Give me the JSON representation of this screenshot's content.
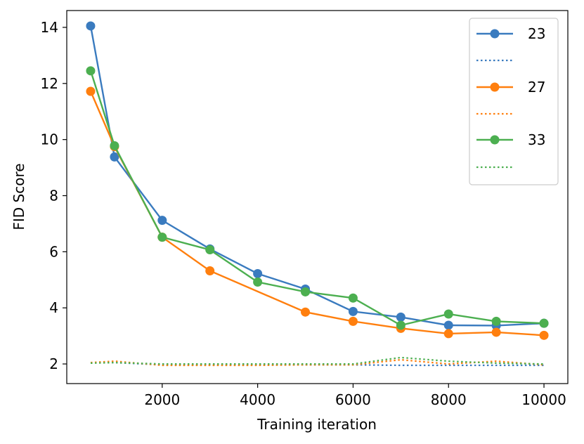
{
  "chart_data": {
    "type": "line",
    "title": "",
    "xlabel": "Training iteration",
    "ylabel": "FID Score",
    "xlim": [
      0,
      10500
    ],
    "ylim": [
      1.3,
      14.6
    ],
    "xticks": [
      2000,
      4000,
      6000,
      8000,
      10000
    ],
    "yticks": [
      2,
      4,
      6,
      8,
      10,
      12,
      14
    ],
    "x": [
      500,
      1000,
      2000,
      3000,
      4000,
      5000,
      6000,
      7000,
      8000,
      9000,
      10000
    ],
    "series": [
      {
        "name": "23",
        "color": "#3a7bbf",
        "style": "solid-marker",
        "values": [
          14.05,
          9.38,
          7.12,
          6.1,
          5.22,
          4.67,
          3.87,
          3.67,
          3.38,
          3.37,
          3.45
        ]
      },
      {
        "name": "",
        "color": "#3a7bbf",
        "style": "dotted",
        "values": [
          2.05,
          2.05,
          1.97,
          1.97,
          1.97,
          1.97,
          1.97,
          1.95,
          1.95,
          1.95,
          1.95
        ]
      },
      {
        "name": "27",
        "color": "#ff7f0e",
        "style": "solid-marker",
        "values": [
          11.72,
          9.75,
          6.52,
          5.32,
          null,
          3.85,
          3.52,
          3.27,
          3.08,
          3.13,
          3.02
        ]
      },
      {
        "name": "",
        "color": "#ff7f0e",
        "style": "dotted",
        "values": [
          2.05,
          2.1,
          1.95,
          1.95,
          1.95,
          1.97,
          1.97,
          2.15,
          2.0,
          2.1,
          1.97
        ]
      },
      {
        "name": "33",
        "color": "#4caf50",
        "style": "solid-marker",
        "values": [
          12.45,
          9.78,
          6.52,
          6.07,
          4.92,
          4.57,
          4.35,
          3.38,
          3.78,
          3.52,
          3.45
        ]
      },
      {
        "name": "",
        "color": "#4caf50",
        "style": "dotted",
        "values": [
          2.03,
          2.05,
          2.0,
          2.0,
          2.0,
          2.0,
          2.0,
          2.23,
          2.1,
          2.03,
          2.0
        ]
      }
    ],
    "legend": {
      "placement": "top-right"
    }
  }
}
